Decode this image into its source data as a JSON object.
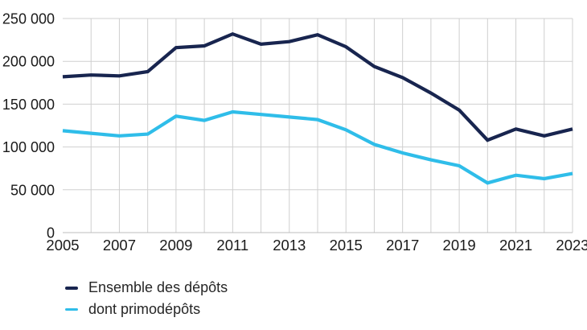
{
  "chart_data": {
    "type": "line",
    "x": [
      2005,
      2006,
      2007,
      2008,
      2009,
      2010,
      2011,
      2012,
      2013,
      2014,
      2015,
      2016,
      2017,
      2018,
      2019,
      2020,
      2021,
      2022,
      2023
    ],
    "series": [
      {
        "name": "Ensemble des dépôts",
        "color": "#18254f",
        "values": [
          182000,
          184000,
          183000,
          188000,
          216000,
          218000,
          232000,
          220000,
          223000,
          231000,
          217000,
          194000,
          181000,
          163000,
          143000,
          108000,
          121000,
          113000,
          121000
        ]
      },
      {
        "name": "dont primodépôts",
        "color": "#2fbde9",
        "values": [
          119000,
          116000,
          113000,
          115000,
          136000,
          131000,
          141000,
          138000,
          135000,
          132000,
          120000,
          103000,
          93000,
          85000,
          78000,
          58000,
          67000,
          63000,
          69000
        ]
      }
    ],
    "title": "",
    "xlabel": "",
    "ylabel": "",
    "ylim": [
      0,
      250000
    ],
    "yticks": [
      0,
      50000,
      100000,
      150000,
      200000,
      250000
    ],
    "ytick_labels": [
      "0",
      "50 000",
      "100 000",
      "150 000",
      "200 000",
      "250 000"
    ],
    "xticks": [
      2005,
      2007,
      2009,
      2011,
      2013,
      2015,
      2017,
      2019,
      2021,
      2023
    ],
    "xtick_labels": [
      "2005",
      "2007",
      "2009",
      "2011",
      "2013",
      "2015",
      "2017",
      "2019",
      "2021",
      "2023"
    ],
    "grid": true,
    "legend_position": "bottom-left",
    "colors": {
      "gridline": "#cfcfcf",
      "axis_line": "#bdbdbd",
      "tick_text": "#1a1a1a"
    }
  }
}
